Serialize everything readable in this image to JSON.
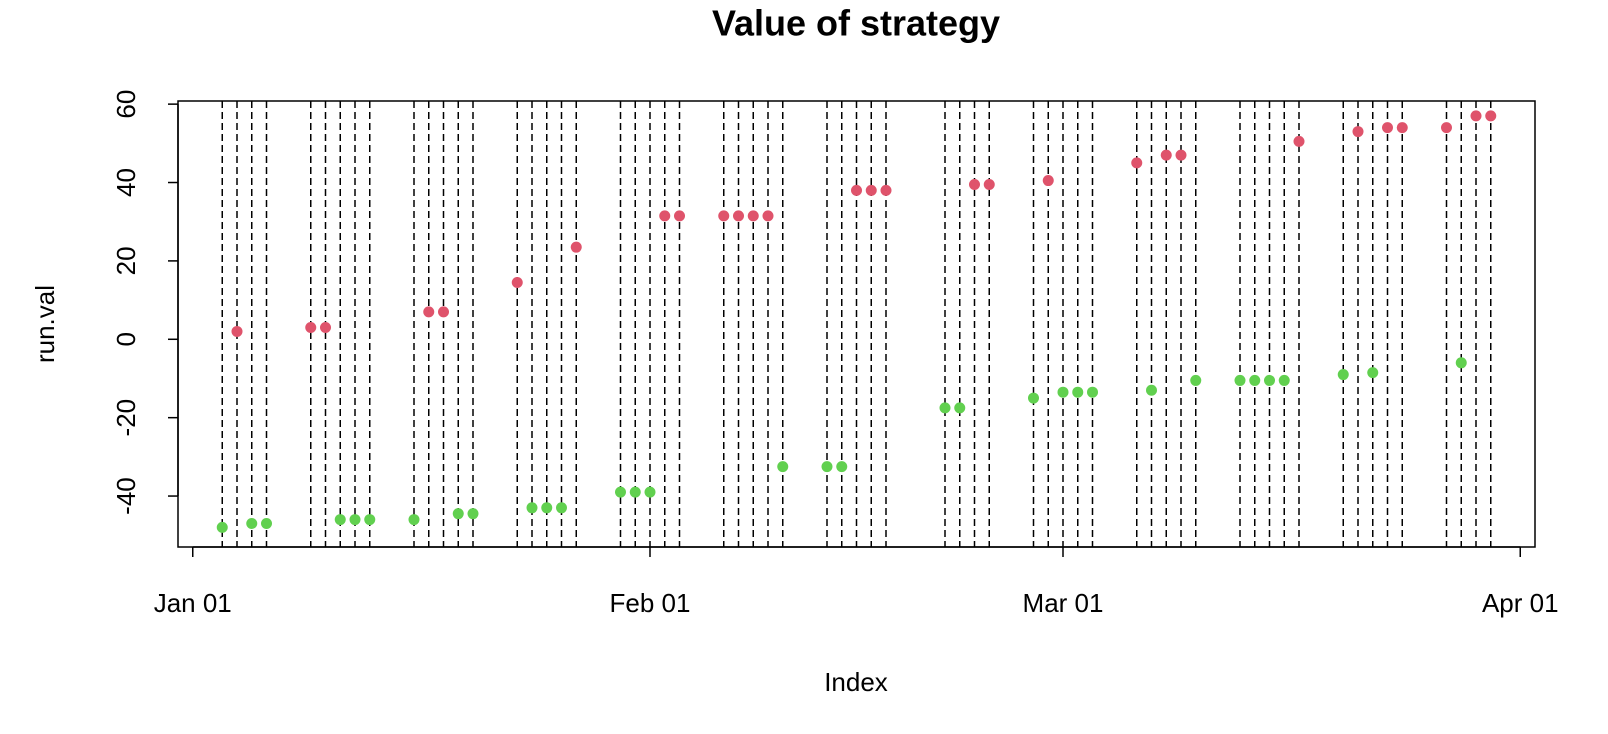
{
  "chart_data": {
    "type": "line",
    "title": "Value of strategy",
    "xlabel": "Index",
    "ylabel": "run.val",
    "x": [
      "Jan 03",
      "Jan 04",
      "Jan 05",
      "Jan 06",
      "Jan 09",
      "Jan 10",
      "Jan 11",
      "Jan 12",
      "Jan 13",
      "Jan 16",
      "Jan 17",
      "Jan 18",
      "Jan 19",
      "Jan 20",
      "Jan 23",
      "Jan 24",
      "Jan 25",
      "Jan 26",
      "Jan 27",
      "Jan 30",
      "Jan 31",
      "Feb 01",
      "Feb 02",
      "Feb 03",
      "Feb 06",
      "Feb 07",
      "Feb 08",
      "Feb 09",
      "Feb 10",
      "Feb 13",
      "Feb 14",
      "Feb 15",
      "Feb 16",
      "Feb 17",
      "Feb 21",
      "Feb 22",
      "Feb 23",
      "Feb 24",
      "Feb 27",
      "Feb 28",
      "Mar 01",
      "Mar 02",
      "Mar 03",
      "Mar 06",
      "Mar 07",
      "Mar 08",
      "Mar 09",
      "Mar 10",
      "Mar 13",
      "Mar 14",
      "Mar 15",
      "Mar 16",
      "Mar 17",
      "Mar 20",
      "Mar 21",
      "Mar 22",
      "Mar 23",
      "Mar 24",
      "Mar 27",
      "Mar 28",
      "Mar 29",
      "Mar 30"
    ],
    "values": [
      -48,
      2,
      -47,
      -47,
      3,
      3,
      -46,
      -46,
      -46,
      -46,
      7,
      7,
      -44.5,
      -44.5,
      14.5,
      -43,
      -43,
      -43,
      23.5,
      -39,
      -39,
      -39,
      31.5,
      31.5,
      31.5,
      31.5,
      31.5,
      31.5,
      -32.5,
      -32.5,
      -32.5,
      38,
      38,
      38,
      -17.5,
      -17.5,
      39.5,
      39.5,
      -15,
      40.5,
      -13.5,
      -13.5,
      -13.5,
      45,
      -13,
      47,
      47,
      -10.5,
      -10.5,
      -10.5,
      -10.5,
      -10.5,
      50.5,
      -9,
      53,
      -8.5,
      54,
      54,
      54,
      -6,
      57,
      57
    ],
    "point_colors": [
      "#61D04F",
      "#DF536B",
      "#61D04F",
      "#61D04F",
      "#DF536B",
      "#DF536B",
      "#61D04F",
      "#61D04F",
      "#61D04F",
      "#61D04F",
      "#DF536B",
      "#DF536B",
      "#61D04F",
      "#61D04F",
      "#DF536B",
      "#61D04F",
      "#61D04F",
      "#61D04F",
      "#DF536B",
      "#61D04F",
      "#61D04F",
      "#61D04F",
      "#DF536B",
      "#DF536B",
      "#DF536B",
      "#DF536B",
      "#DF536B",
      "#DF536B",
      "#61D04F",
      "#61D04F",
      "#61D04F",
      "#DF536B",
      "#DF536B",
      "#DF536B",
      "#61D04F",
      "#61D04F",
      "#DF536B",
      "#DF536B",
      "#61D04F",
      "#DF536B",
      "#61D04F",
      "#61D04F",
      "#61D04F",
      "#DF536B",
      "#61D04F",
      "#DF536B",
      "#DF536B",
      "#61D04F",
      "#61D04F",
      "#61D04F",
      "#61D04F",
      "#61D04F",
      "#DF536B",
      "#61D04F",
      "#DF536B",
      "#61D04F",
      "#DF536B",
      "#DF536B",
      "#DF536B",
      "#61D04F",
      "#DF536B",
      "#DF536B"
    ],
    "color": "#000000",
    "vlines": true,
    "xlim": [
      "Dec 31",
      "Apr 02"
    ],
    "xticks": [
      "Jan 01",
      "Feb 01",
      "Mar 01",
      "Apr 01"
    ],
    "ylim": [
      -53,
      60.8
    ],
    "yticks": [
      -40,
      -20,
      0,
      20,
      40,
      60
    ]
  }
}
